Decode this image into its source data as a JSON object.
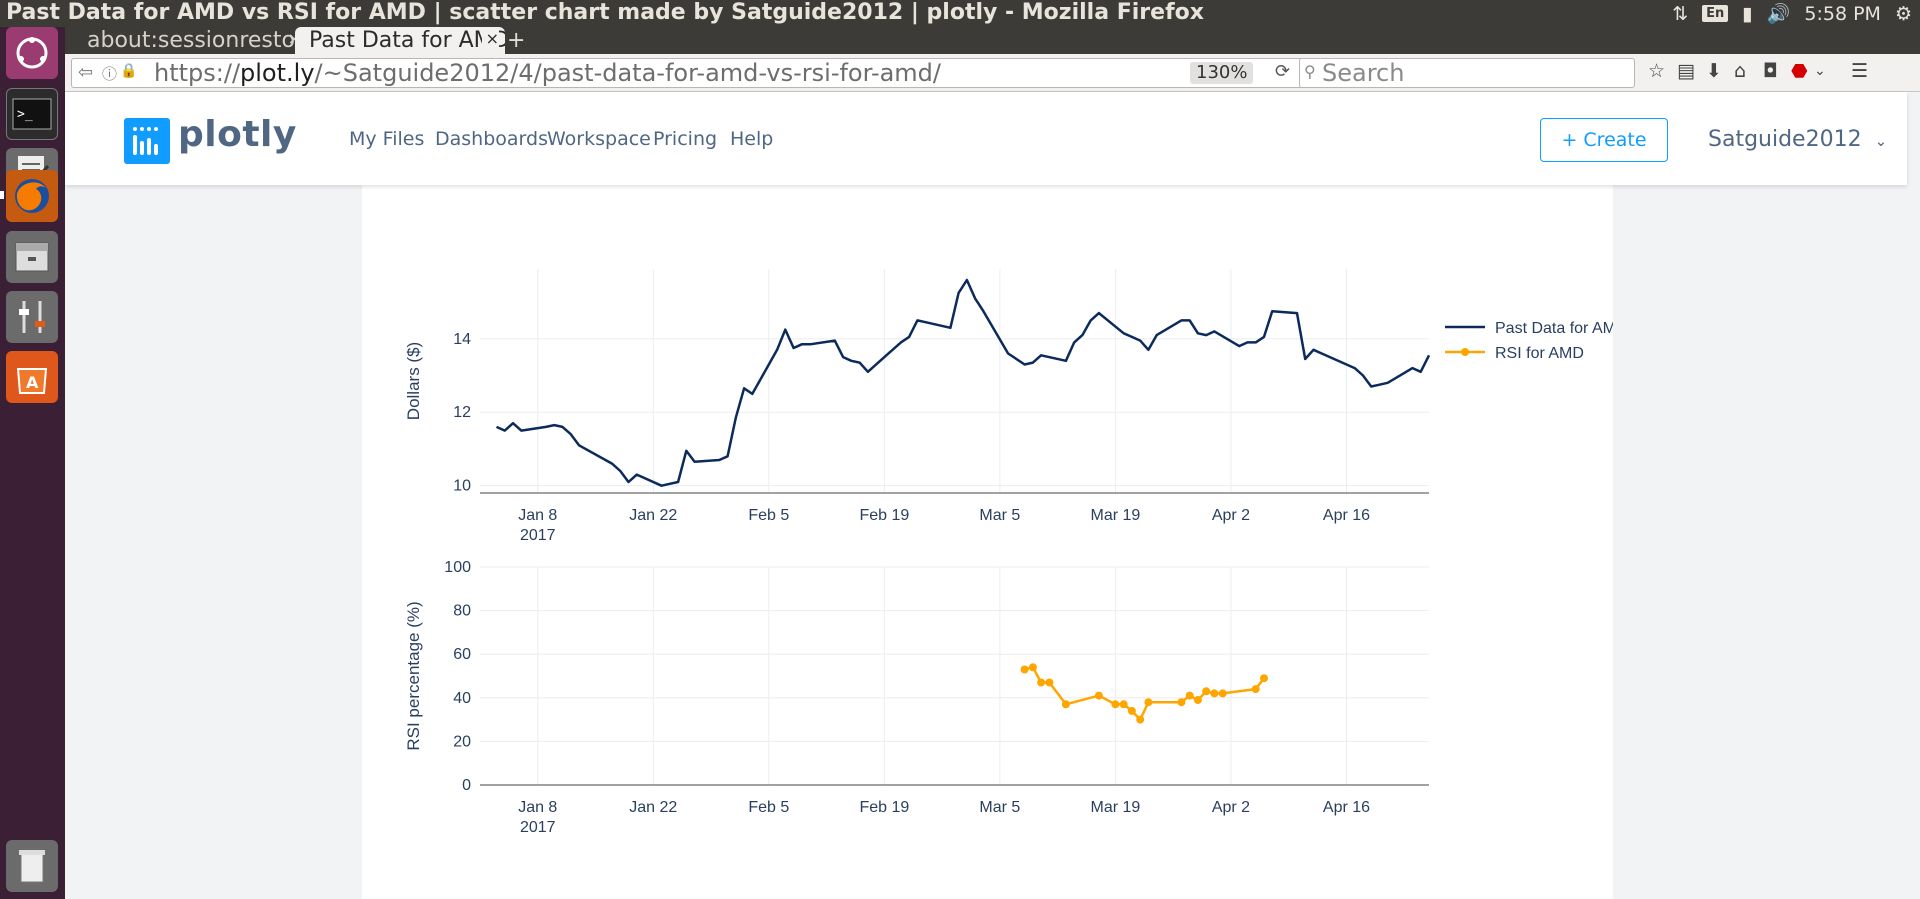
{
  "os": {
    "window_title": "Past Data for AMD vs RSI for AMD | scatter chart made by Satguide2012 | plotly - Mozilla Firefox",
    "lang": "En",
    "clock": "5:58 PM"
  },
  "browser": {
    "tabs": [
      {
        "label": "about:sessionrestore"
      },
      {
        "label": "Past Data for AMD vs RSI for AMD"
      }
    ],
    "url_scheme": "https://",
    "url_host": "plot.ly",
    "url_path": "/~Satguide2012/4/past-data-for-amd-vs-rsi-for-amd/",
    "zoom": "130%",
    "search_placeholder": "Search"
  },
  "plotly": {
    "logo": "plotly",
    "nav": [
      "My Files",
      "Dashboards",
      "Workspace",
      "Pricing",
      "Help"
    ],
    "create_label": "+ Create",
    "user": "Satguide2012"
  },
  "colors": {
    "price_line": "#0d2a5c",
    "rsi_line": "#ffa500",
    "plotly_blue": "#119dff"
  },
  "chart_data": [
    {
      "type": "line",
      "name_title_shown": false,
      "ylabel": "Dollars ($)",
      "xlabel": "",
      "ylim": [
        9.8,
        15.9
      ],
      "xlim": [
        "2017-01-01",
        "2017-04-26"
      ],
      "x_ticks": [
        "Jan 8",
        "Jan 22",
        "Feb 5",
        "Feb 19",
        "Mar 5",
        "Mar 19",
        "Apr 2",
        "Apr 16"
      ],
      "x_tick_year": "2017",
      "y_ticks": [
        10,
        12,
        14
      ],
      "grid": true,
      "legend_position": "top-right",
      "series": [
        {
          "name": "Past Data for AMD",
          "x": [
            "2017-01-03",
            "2017-01-04",
            "2017-01-05",
            "2017-01-06",
            "2017-01-09",
            "2017-01-10",
            "2017-01-11",
            "2017-01-12",
            "2017-01-13",
            "2017-01-17",
            "2017-01-18",
            "2017-01-19",
            "2017-01-20",
            "2017-01-23",
            "2017-01-24",
            "2017-01-25",
            "2017-01-26",
            "2017-01-27",
            "2017-01-30",
            "2017-01-31",
            "2017-02-01",
            "2017-02-02",
            "2017-02-03",
            "2017-02-06",
            "2017-02-07",
            "2017-02-08",
            "2017-02-09",
            "2017-02-10",
            "2017-02-13",
            "2017-02-14",
            "2017-02-15",
            "2017-02-16",
            "2017-02-17",
            "2017-02-21",
            "2017-02-22",
            "2017-02-23",
            "2017-02-24",
            "2017-02-27",
            "2017-02-28",
            "2017-03-01",
            "2017-03-02",
            "2017-03-03",
            "2017-03-06",
            "2017-03-07",
            "2017-03-08",
            "2017-03-09",
            "2017-03-10",
            "2017-03-13",
            "2017-03-14",
            "2017-03-15",
            "2017-03-16",
            "2017-03-17",
            "2017-03-20",
            "2017-03-21",
            "2017-03-22",
            "2017-03-23",
            "2017-03-24",
            "2017-03-27",
            "2017-03-28",
            "2017-03-29",
            "2017-03-30",
            "2017-03-31",
            "2017-04-03",
            "2017-04-04",
            "2017-04-05",
            "2017-04-06",
            "2017-04-07",
            "2017-04-10",
            "2017-04-11",
            "2017-04-12",
            "2017-04-13",
            "2017-04-17",
            "2017-04-18",
            "2017-04-19",
            "2017-04-20",
            "2017-04-21",
            "2017-04-24",
            "2017-04-25",
            "2017-04-26"
          ],
          "y": [
            11.6,
            11.5,
            11.7,
            11.5,
            11.6,
            11.65,
            11.6,
            11.4,
            11.1,
            10.6,
            10.4,
            10.1,
            10.3,
            10.0,
            10.05,
            10.1,
            10.95,
            10.65,
            10.7,
            10.8,
            11.85,
            12.65,
            12.5,
            13.7,
            14.25,
            13.75,
            13.85,
            13.85,
            13.95,
            13.5,
            13.4,
            13.35,
            13.1,
            13.9,
            14.05,
            14.5,
            14.45,
            14.3,
            15.25,
            15.6,
            15.1,
            14.75,
            13.6,
            13.45,
            13.3,
            13.35,
            13.55,
            13.4,
            13.9,
            14.1,
            14.5,
            14.7,
            14.15,
            14.05,
            13.95,
            13.7,
            14.1,
            14.5,
            14.5,
            14.15,
            14.1,
            14.2,
            13.8,
            13.9,
            13.9,
            14.05,
            14.75,
            14.7,
            13.45,
            13.7,
            13.6,
            13.2,
            13.0,
            12.7,
            12.75,
            12.8,
            13.2,
            13.1,
            13.55
          ]
        }
      ]
    },
    {
      "type": "line",
      "ylabel": "RSI percentage (%)",
      "xlabel": "",
      "ylim": [
        0,
        100
      ],
      "xlim": [
        "2017-01-01",
        "2017-04-26"
      ],
      "x_ticks": [
        "Jan 8",
        "Jan 22",
        "Feb 5",
        "Feb 19",
        "Mar 5",
        "Mar 19",
        "Apr 2",
        "Apr 16"
      ],
      "x_tick_year": "2017",
      "y_ticks": [
        0,
        20,
        40,
        60,
        80,
        100
      ],
      "grid": true,
      "series": [
        {
          "name": "RSI for AMD",
          "x": [
            "2017-03-08",
            "2017-03-09",
            "2017-03-10",
            "2017-03-11",
            "2017-03-13",
            "2017-03-17",
            "2017-03-19",
            "2017-03-20",
            "2017-03-21",
            "2017-03-22",
            "2017-03-23",
            "2017-03-27",
            "2017-03-28",
            "2017-03-29",
            "2017-03-30",
            "2017-03-31",
            "2017-04-01",
            "2017-04-05",
            "2017-04-06"
          ],
          "y": [
            53,
            54,
            47,
            47,
            37,
            41,
            37,
            37,
            34,
            30,
            38,
            38,
            41,
            39,
            43,
            42,
            42,
            44,
            49
          ]
        }
      ]
    }
  ]
}
